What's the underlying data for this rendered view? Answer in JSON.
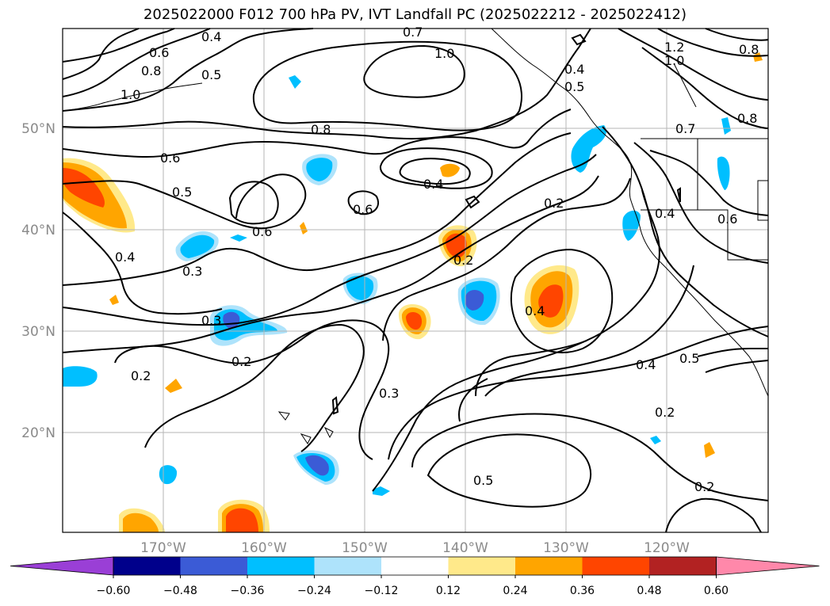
{
  "title": "2025022000 F012 700 hPa PV, IVT Landfall PC (2025022212 - 2025022412)",
  "lat_labels": [
    "50°N",
    "40°N",
    "30°N",
    "20°N"
  ],
  "lon_labels": [
    "170°W",
    "160°W",
    "150°W",
    "140°W",
    "130°W",
    "120°W"
  ],
  "colorbar": {
    "ticks": [
      "−0.60",
      "−0.48",
      "−0.36",
      "−0.24",
      "−0.12",
      "0.12",
      "0.24",
      "0.36",
      "0.48",
      "0.60"
    ],
    "colors": [
      "#9a3fd6",
      "#00008b",
      "#3b5bd6",
      "#00bfff",
      "#aee3fb",
      "#ffffff",
      "#ffe98a",
      "#ffa500",
      "#ff4500",
      "#b22222",
      "#ff88aa"
    ]
  },
  "contour_labels": [
    "0.4",
    "0.7",
    "1.0",
    "1.2",
    "1.0",
    "0.8",
    "0.6",
    "0.8",
    "0.5",
    "1.0",
    "0.4",
    "0.5",
    "0.8",
    "0.7",
    "0.8",
    "0.6",
    "0.5",
    "0.6",
    "0.4",
    "0.2",
    "0.4",
    "0.6",
    "0.4",
    "0.3",
    "0.6",
    "0.2",
    "0.3",
    "0.4",
    "0.2",
    "0.2",
    "0.3",
    "0.4",
    "0.5",
    "0.2",
    "0.5",
    "0.2"
  ]
}
